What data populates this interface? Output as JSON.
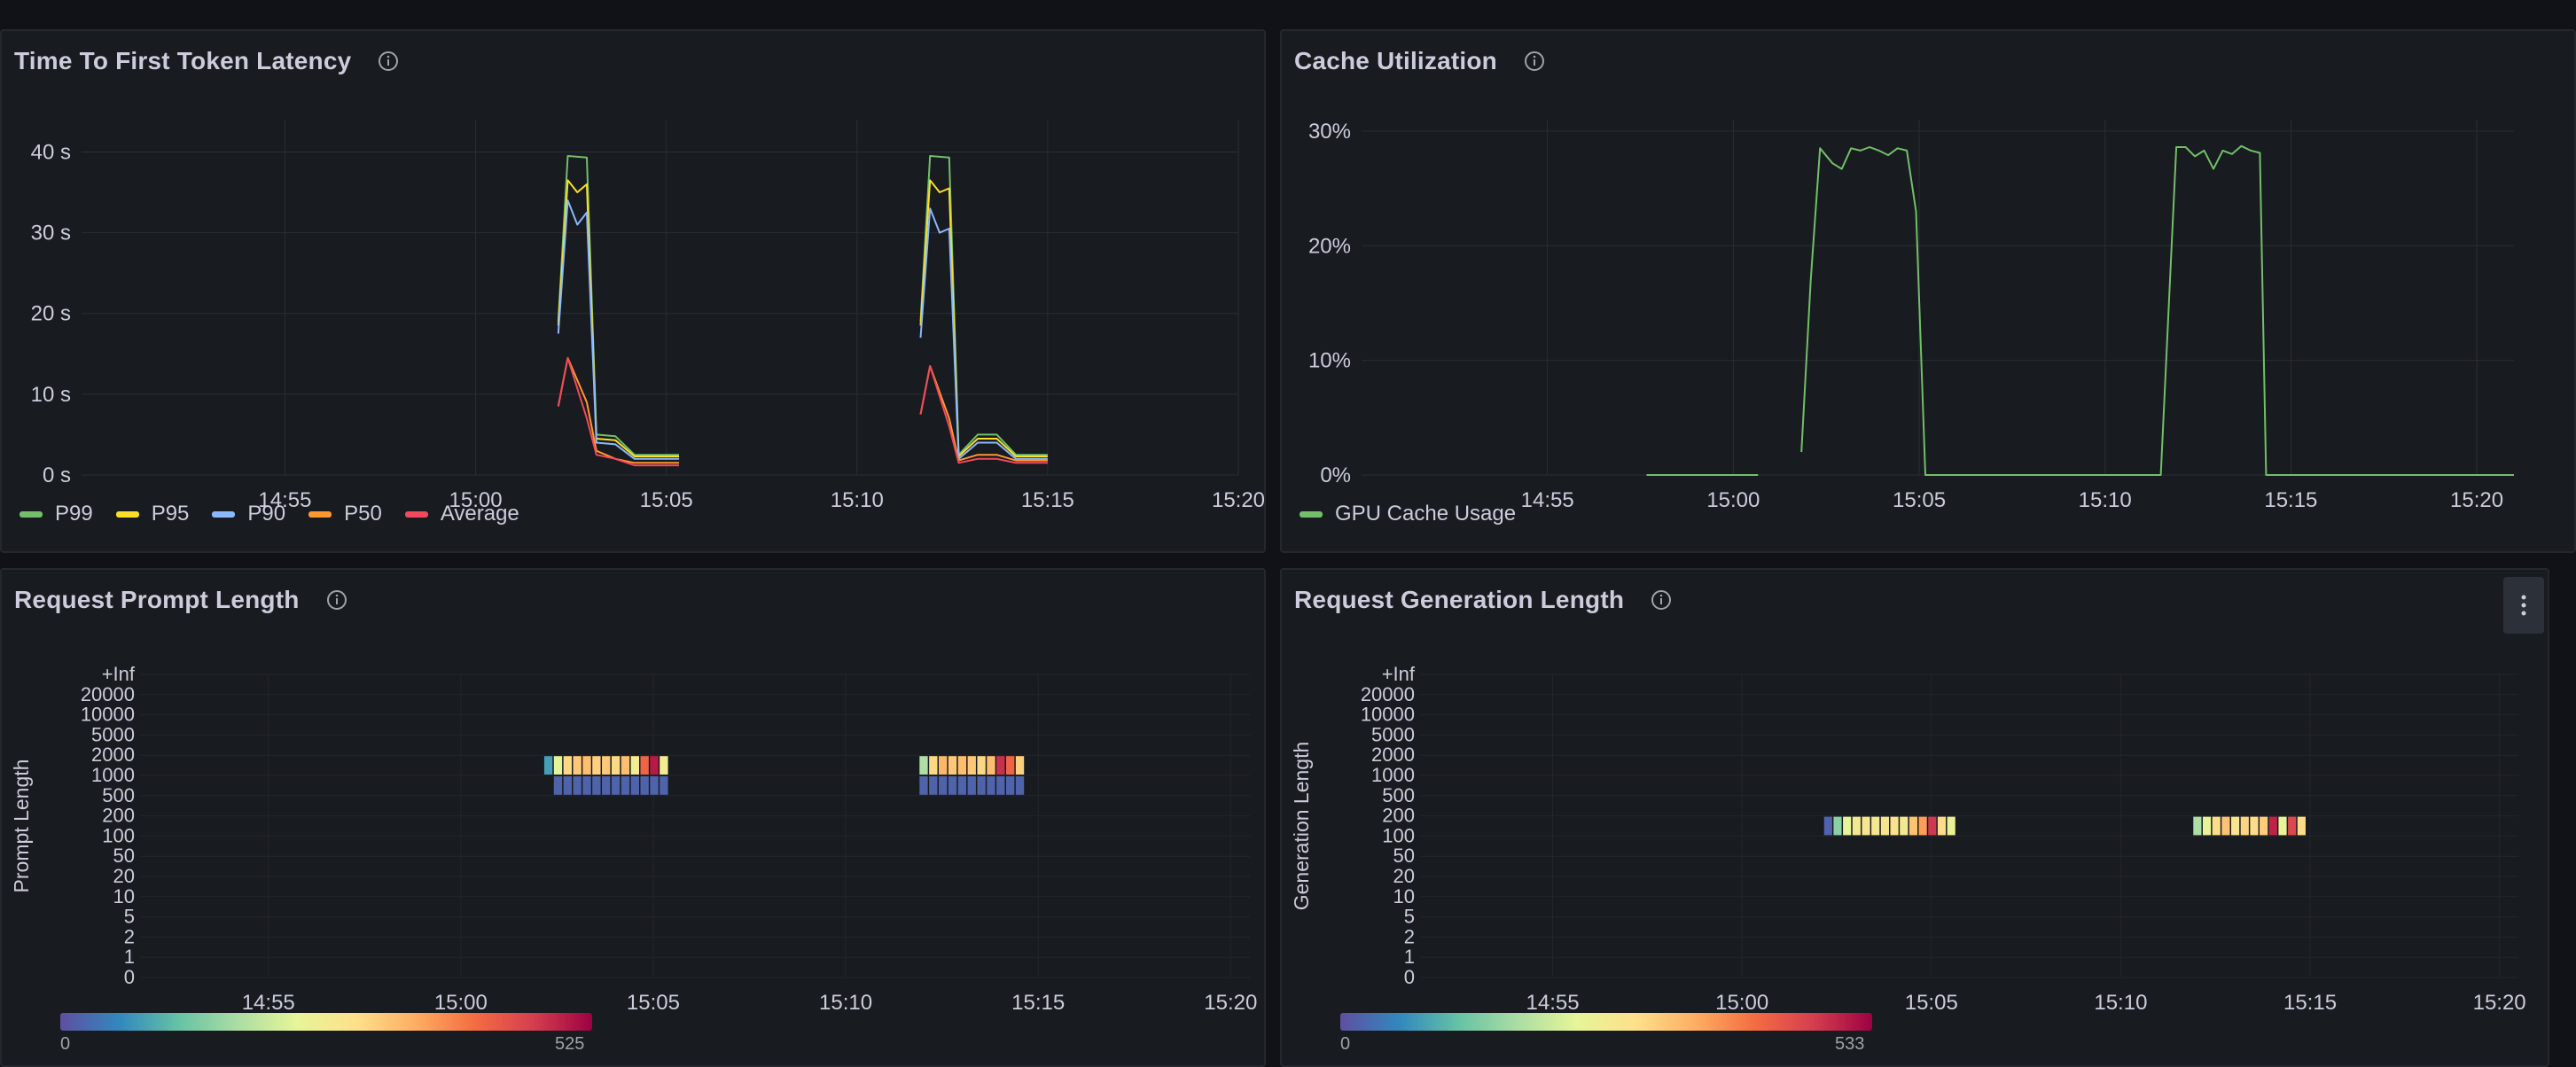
{
  "colors": {
    "p99": "#73bf69",
    "p95": "#fade2a",
    "p90": "#8ab8ff",
    "p50": "#ff9830",
    "average": "#f2495c",
    "gpu": "#73bf69"
  },
  "panels": {
    "ttft": {
      "title": "Time To First Token Latency",
      "legend": [
        {
          "label": "P99",
          "color": "#73bf69"
        },
        {
          "label": "P95",
          "color": "#fade2a"
        },
        {
          "label": "P90",
          "color": "#8ab8ff"
        },
        {
          "label": "P50",
          "color": "#ff9830"
        },
        {
          "label": "Average",
          "color": "#f2495c"
        }
      ]
    },
    "cache": {
      "title": "Cache Utilization",
      "legend": [
        {
          "label": "GPU Cache Usage",
          "color": "#73bf69"
        }
      ]
    },
    "prompt": {
      "title": "Request Prompt Length",
      "scale_min": "0",
      "scale_max": "525"
    },
    "generation": {
      "title": "Request Generation Length",
      "scale_min": "0",
      "scale_max": "533"
    }
  },
  "chart_data": [
    {
      "type": "line",
      "title": "Time To First Token Latency",
      "x_ticks": [
        "14:55",
        "15:00",
        "15:05",
        "15:10",
        "15:15",
        "15:20"
      ],
      "y_ticks": [
        "0 s",
        "10 s",
        "20 s",
        "30 s",
        "40 s"
      ],
      "ylim": [
        0,
        44
      ],
      "x_range": [
        "14:49:40",
        "15:20"
      ],
      "series": [
        {
          "name": "P99",
          "points": [
            [
              "15:02:10",
              19
            ],
            [
              "15:02:25",
              39.5
            ],
            [
              "15:02:55",
              39.3
            ],
            [
              "15:03:10",
              5
            ],
            [
              "15:03:40",
              4.8
            ],
            [
              "15:04:10",
              2.5
            ],
            [
              "15:05:20",
              2.5
            ]
          ]
        },
        {
          "name": "P95",
          "points": [
            [
              "15:02:10",
              18.5
            ],
            [
              "15:02:25",
              36.5
            ],
            [
              "15:02:40",
              35
            ],
            [
              "15:02:55",
              36
            ],
            [
              "15:03:10",
              4.5
            ],
            [
              "15:03:40",
              4.3
            ],
            [
              "15:04:10",
              2.3
            ],
            [
              "15:05:20",
              2.3
            ]
          ]
        },
        {
          "name": "P90",
          "points": [
            [
              "15:02:10",
              17.5
            ],
            [
              "15:02:25",
              34
            ],
            [
              "15:02:40",
              31
            ],
            [
              "15:02:55",
              32.5
            ],
            [
              "15:03:10",
              4
            ],
            [
              "15:03:40",
              3.8
            ],
            [
              "15:04:10",
              2
            ],
            [
              "15:05:20",
              2
            ]
          ]
        },
        {
          "name": "P50",
          "points": [
            [
              "15:02:10",
              8.5
            ],
            [
              "15:02:25",
              14.5
            ],
            [
              "15:02:55",
              9
            ],
            [
              "15:03:10",
              3
            ],
            [
              "15:03:40",
              2
            ],
            [
              "15:04:10",
              1.5
            ],
            [
              "15:05:20",
              1.5
            ]
          ]
        },
        {
          "name": "Average",
          "points": [
            [
              "15:02:10",
              8.5
            ],
            [
              "15:02:25",
              14.5
            ],
            [
              "15:02:55",
              7
            ],
            [
              "15:03:10",
              2.5
            ],
            [
              "15:03:40",
              2
            ],
            [
              "15:04:10",
              1.2
            ],
            [
              "15:05:20",
              1.2
            ]
          ]
        },
        {
          "name": "P99",
          "points": [
            [
              "15:11:40",
              19
            ],
            [
              "15:11:55",
              39.5
            ],
            [
              "15:12:25",
              39.3
            ],
            [
              "15:12:40",
              2.5
            ],
            [
              "15:13:10",
              5
            ],
            [
              "15:13:40",
              5
            ],
            [
              "15:14:10",
              2.5
            ],
            [
              "15:15:00",
              2.5
            ]
          ]
        },
        {
          "name": "P95",
          "points": [
            [
              "15:11:40",
              18.5
            ],
            [
              "15:11:55",
              36.5
            ],
            [
              "15:12:10",
              35
            ],
            [
              "15:12:25",
              35.5
            ],
            [
              "15:12:40",
              2.3
            ],
            [
              "15:13:10",
              4.5
            ],
            [
              "15:13:40",
              4.5
            ],
            [
              "15:14:10",
              2.3
            ],
            [
              "15:15:00",
              2.3
            ]
          ]
        },
        {
          "name": "P90",
          "points": [
            [
              "15:11:40",
              17
            ],
            [
              "15:11:55",
              33
            ],
            [
              "15:12:10",
              30
            ],
            [
              "15:12:25",
              30.5
            ],
            [
              "15:12:40",
              2
            ],
            [
              "15:13:10",
              4
            ],
            [
              "15:13:40",
              4
            ],
            [
              "15:14:10",
              2
            ],
            [
              "15:15:00",
              2
            ]
          ]
        },
        {
          "name": "P50",
          "points": [
            [
              "15:11:40",
              7.5
            ],
            [
              "15:11:55",
              13.5
            ],
            [
              "15:12:25",
              7
            ],
            [
              "15:12:40",
              1.8
            ],
            [
              "15:13:10",
              2.5
            ],
            [
              "15:13:40",
              2.5
            ],
            [
              "15:14:10",
              1.8
            ],
            [
              "15:15:00",
              1.8
            ]
          ]
        },
        {
          "name": "Average",
          "points": [
            [
              "15:11:40",
              7.5
            ],
            [
              "15:11:55",
              13.5
            ],
            [
              "15:12:25",
              6
            ],
            [
              "15:12:40",
              1.5
            ],
            [
              "15:13:10",
              2
            ],
            [
              "15:13:40",
              2
            ],
            [
              "15:14:10",
              1.5
            ],
            [
              "15:15:00",
              1.5
            ]
          ]
        }
      ]
    },
    {
      "type": "line",
      "title": "Cache Utilization",
      "x_ticks": [
        "14:55",
        "15:00",
        "15:05",
        "15:10",
        "15:15",
        "15:20"
      ],
      "y_ticks": [
        "0%",
        "10%",
        "20%",
        "30%"
      ],
      "ylim": [
        0,
        31
      ],
      "x_range": [
        "14:50",
        "15:21"
      ],
      "series": [
        {
          "name": "GPU Cache Usage",
          "points": [
            [
              "14:57:40",
              0
            ],
            [
              "15:00:40",
              0
            ]
          ]
        },
        {
          "name": "GPU Cache Usage",
          "points": [
            [
              "15:01:50",
              2
            ],
            [
              "15:02:05",
              17
            ],
            [
              "15:02:20",
              28.5
            ],
            [
              "15:02:40",
              27.2
            ],
            [
              "15:02:55",
              26.7
            ],
            [
              "15:03:10",
              28.5
            ],
            [
              "15:03:25",
              28.3
            ],
            [
              "15:03:40",
              28.6
            ],
            [
              "15:03:55",
              28.3
            ],
            [
              "15:04:10",
              27.9
            ],
            [
              "15:04:25",
              28.5
            ],
            [
              "15:04:40",
              28.3
            ],
            [
              "15:04:55",
              23
            ],
            [
              "15:05:10",
              0
            ],
            [
              "15:11:30",
              0
            ],
            [
              "15:11:55",
              28.6
            ],
            [
              "15:12:10",
              28.6
            ],
            [
              "15:12:25",
              27.8
            ],
            [
              "15:12:40",
              28.3
            ],
            [
              "15:12:55",
              26.7
            ],
            [
              "15:13:10",
              28.3
            ],
            [
              "15:13:25",
              28
            ],
            [
              "15:13:40",
              28.7
            ],
            [
              "15:13:55",
              28.3
            ],
            [
              "15:14:10",
              28.1
            ],
            [
              "15:14:20",
              0
            ],
            [
              "15:21:00",
              0
            ]
          ]
        }
      ]
    },
    {
      "type": "heatmap",
      "title": "Request Prompt Length",
      "ylabel": "Prompt Length",
      "y_buckets": [
        "0",
        "1",
        "2",
        "5",
        "10",
        "20",
        "50",
        "100",
        "200",
        "500",
        "1000",
        "2000",
        "5000",
        "10000",
        "20000",
        "+Inf"
      ],
      "x_ticks": [
        "14:55",
        "15:00",
        "15:05",
        "15:10",
        "15:15",
        "15:20"
      ],
      "x_range": [
        "14:51:40",
        "15:20:30"
      ],
      "color_range": [
        0,
        525
      ],
      "cells": [
        {
          "bucket": "2000",
          "start": "15:02:10",
          "values": [
            80,
            230,
            300,
            320,
            330,
            310,
            320,
            300,
            330,
            260,
            420,
            500,
            260
          ]
        },
        {
          "bucket": "1000",
          "start": "15:02:25",
          "values": [
            20,
            20,
            20,
            20,
            20,
            20,
            20,
            20,
            20,
            20,
            20,
            20
          ]
        },
        {
          "bucket": "2000",
          "start": "15:11:55",
          "values": [
            180,
            300,
            340,
            320,
            330,
            320,
            300,
            330,
            480,
            420,
            310
          ]
        },
        {
          "bucket": "1000",
          "start": "15:11:55",
          "values": [
            20,
            20,
            20,
            20,
            20,
            20,
            20,
            20,
            20,
            20,
            20
          ]
        }
      ]
    },
    {
      "type": "heatmap",
      "title": "Request Generation Length",
      "ylabel": "Generation Length",
      "y_buckets": [
        "0",
        "1",
        "2",
        "5",
        "10",
        "20",
        "50",
        "100",
        "200",
        "500",
        "1000",
        "2000",
        "5000",
        "10000",
        "20000",
        "+Inf"
      ],
      "x_ticks": [
        "14:55",
        "15:00",
        "15:05",
        "15:10",
        "15:15",
        "15:20"
      ],
      "x_range": [
        "14:51:30",
        "15:20:30"
      ],
      "color_range": [
        0,
        533
      ],
      "cells": [
        {
          "bucket": "200",
          "start": "15:02:10",
          "values": [
            20,
            150,
            240,
            270,
            280,
            270,
            280,
            290,
            270,
            330,
            370,
            480,
            300,
            250
          ]
        },
        {
          "bucket": "200",
          "start": "15:11:55",
          "values": [
            180,
            240,
            300,
            330,
            280,
            310,
            300,
            320,
            500,
            240,
            460,
            300
          ]
        }
      ]
    }
  ]
}
